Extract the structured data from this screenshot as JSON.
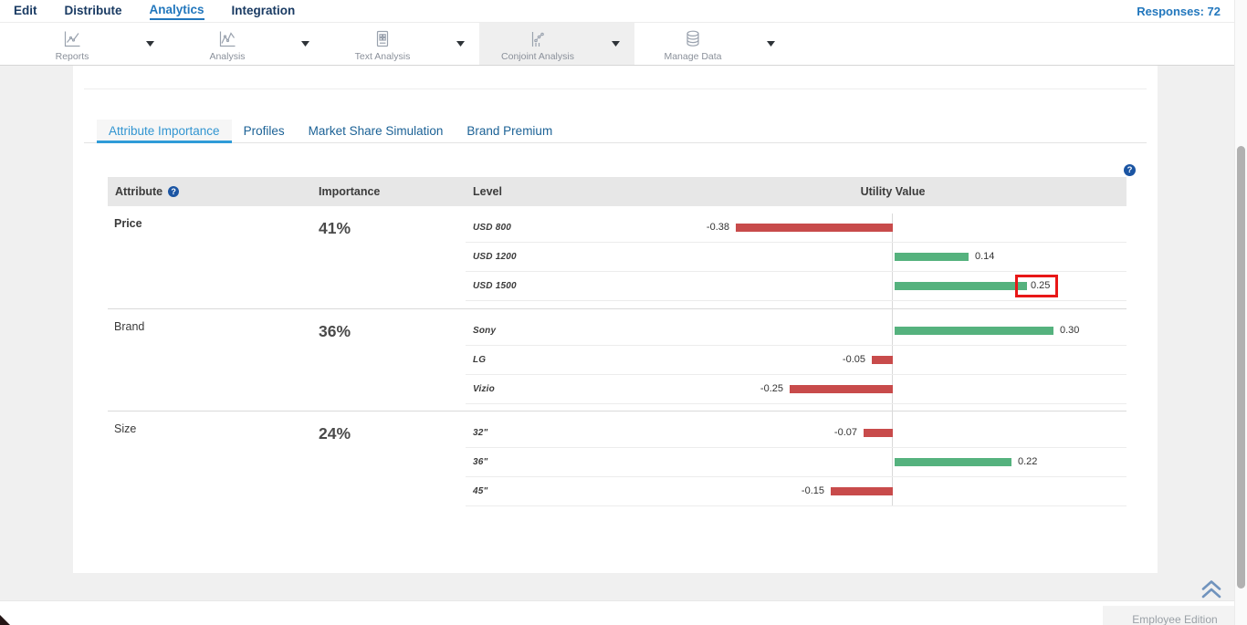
{
  "nav": {
    "items": [
      {
        "label": "Edit",
        "active": false
      },
      {
        "label": "Distribute",
        "active": false
      },
      {
        "label": "Analytics",
        "active": true
      },
      {
        "label": "Integration",
        "active": false
      }
    ],
    "responses_label": "Responses: 72"
  },
  "toolbar": {
    "buttons": [
      {
        "label": "Reports",
        "icon": "reports-icon",
        "active": false
      },
      {
        "label": "Analysis",
        "icon": "analysis-icon",
        "active": false
      },
      {
        "label": "Text Analysis",
        "icon": "text-analysis-icon",
        "active": false
      },
      {
        "label": "Conjoint Analysis",
        "icon": "conjoint-analysis-icon",
        "active": true
      },
      {
        "label": "Manage Data",
        "icon": "manage-data-icon",
        "active": false
      }
    ]
  },
  "tabs": [
    {
      "label": "Attribute Importance",
      "active": true
    },
    {
      "label": "Profiles",
      "active": false
    },
    {
      "label": "Market Share Simulation",
      "active": false
    },
    {
      "label": "Brand Premium",
      "active": false
    }
  ],
  "table": {
    "headers": {
      "attribute": "Attribute",
      "importance": "Importance",
      "level": "Level",
      "utility": "Utility Value"
    },
    "groups": [
      {
        "attribute": "Price",
        "importance": "41%",
        "emphasized": true,
        "levels": [
          {
            "label": "USD 800",
            "value": -0.38,
            "display": "-0.38"
          },
          {
            "label": "USD 1200",
            "value": 0.14,
            "display": "0.14"
          },
          {
            "label": "USD 1500",
            "value": 0.25,
            "display": "0.25",
            "highlighted": true
          }
        ]
      },
      {
        "attribute": "Brand",
        "importance": "36%",
        "emphasized": false,
        "levels": [
          {
            "label": "Sony",
            "value": 0.3,
            "display": "0.30"
          },
          {
            "label": "LG",
            "value": -0.05,
            "display": "-0.05"
          },
          {
            "label": "Vizio",
            "value": -0.25,
            "display": "-0.25"
          }
        ]
      },
      {
        "attribute": "Size",
        "importance": "24%",
        "emphasized": false,
        "levels": [
          {
            "label": "32\"",
            "value": -0.07,
            "display": "-0.07"
          },
          {
            "label": "36\"",
            "value": 0.22,
            "display": "0.22"
          },
          {
            "label": "45\"",
            "value": -0.15,
            "display": "-0.15"
          }
        ]
      }
    ]
  },
  "colors": {
    "positive_bar": "#55b27e",
    "negative_bar": "#c84b4b",
    "highlight_box": "#e81717",
    "accent_blue": "#2277bd",
    "tab_active": "#2f9cd8"
  },
  "footer": {
    "edition_label": "Employee Edition"
  }
}
